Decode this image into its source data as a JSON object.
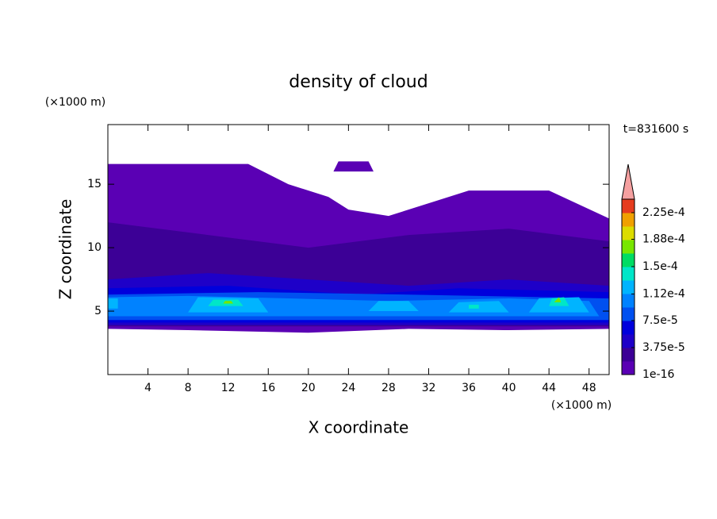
{
  "chart_data": {
    "type": "contour",
    "title": "density of cloud",
    "xlabel": "X coordinate",
    "ylabel": "Z coordinate",
    "xunit": "(×1000 m)",
    "yunit": "(×1000 m)",
    "time_label": "t=831600 s",
    "xlim": [
      0,
      50
    ],
    "ylim": [
      0,
      19.7
    ],
    "xticks": [
      4,
      8,
      12,
      16,
      20,
      24,
      28,
      32,
      36,
      40,
      44,
      48
    ],
    "yticks": [
      5,
      10,
      15
    ],
    "clim": [
      0,
      0.00024375
    ],
    "colors": [
      "#5a00b4",
      "#3c0096",
      "#1e00c8",
      "#0000dc",
      "#0050f0",
      "#0082ff",
      "#00b4ff",
      "#00e6c8",
      "#00dc64",
      "#78e600",
      "#dcdc00",
      "#f0a000",
      "#e63c1e"
    ],
    "extend_color": "#f5a0a0",
    "colorbar_ticks": [
      {
        "value": 1e-16,
        "label": "1e-16"
      },
      {
        "value": 3.75e-05,
        "label": "3.75e-5"
      },
      {
        "value": 7.5e-05,
        "label": "7.5e-5"
      },
      {
        "value": 0.000112,
        "label": "1.12e-4"
      },
      {
        "value": 0.00015,
        "label": "1.5e-4"
      },
      {
        "value": 0.000188,
        "label": "1.88e-4"
      },
      {
        "value": 0.000225,
        "label": "2.25e-4"
      }
    ],
    "regions": [
      {
        "value": 9e-06,
        "x": [
          0,
          8,
          20,
          30,
          40,
          50,
          50,
          44,
          36,
          32,
          28,
          24,
          22,
          18,
          14,
          0
        ],
        "z": [
          3.6,
          3.5,
          3.3,
          3.6,
          3.5,
          3.6,
          12.3,
          14.5,
          14.5,
          13.5,
          12.5,
          13,
          14,
          15,
          16.6,
          16.6
        ]
      },
      {
        "value": 9e-06,
        "x": [
          22.5,
          26.5,
          26,
          23
        ],
        "z": [
          16,
          16,
          16.8,
          16.8
        ]
      },
      {
        "value": 2.5e-05,
        "x": [
          0,
          50,
          50,
          40,
          30,
          20,
          10,
          0
        ],
        "z": [
          3.8,
          3.8,
          10.5,
          11.5,
          11,
          10,
          11,
          12
        ]
      },
      {
        "value": 4.5e-05,
        "x": [
          0,
          50,
          50,
          40,
          30,
          20,
          10,
          0
        ],
        "z": [
          3.9,
          3.9,
          7,
          7.5,
          7,
          7.5,
          8,
          7.5
        ]
      },
      {
        "value": 6.5e-05,
        "x": [
          0,
          50,
          50,
          35,
          25,
          12,
          0
        ],
        "z": [
          4.1,
          4.1,
          6.5,
          6.8,
          6.3,
          7,
          6.8
        ]
      },
      {
        "value": 8.5e-05,
        "x": [
          0,
          50,
          50,
          30,
          15,
          0
        ],
        "z": [
          4.3,
          4.3,
          6,
          6.3,
          6.5,
          6.3
        ]
      },
      {
        "value": 0.0001,
        "x": [
          0,
          49,
          48,
          40,
          28,
          18,
          8,
          0
        ],
        "z": [
          4.6,
          4.6,
          5.8,
          6,
          5.8,
          6,
          6.2,
          6.1
        ]
      },
      {
        "value": 0.00012,
        "x": [
          8,
          16,
          15,
          9
        ],
        "z": [
          4.9,
          4.9,
          6,
          6.1
        ]
      },
      {
        "value": 0.00012,
        "x": [
          26,
          31,
          30,
          27
        ],
        "z": [
          5,
          5,
          5.8,
          5.8
        ]
      },
      {
        "value": 0.00012,
        "x": [
          34,
          40,
          39,
          35
        ],
        "z": [
          4.9,
          4.9,
          5.8,
          5.7
        ]
      },
      {
        "value": 0.00012,
        "x": [
          42,
          48,
          47,
          43
        ],
        "z": [
          4.9,
          4.9,
          6.1,
          6
        ]
      },
      {
        "value": 0.00012,
        "x": [
          0,
          1,
          1,
          0
        ],
        "z": [
          5.2,
          5.2,
          6,
          6
        ]
      },
      {
        "value": 0.000145,
        "x": [
          10,
          13.5,
          13,
          10.5
        ],
        "z": [
          5.4,
          5.4,
          5.9,
          5.9
        ]
      },
      {
        "value": 0.000145,
        "x": [
          44,
          46,
          45.5,
          44.3
        ],
        "z": [
          5.4,
          5.4,
          6.1,
          6
        ]
      },
      {
        "value": 0.000145,
        "x": [
          36,
          37,
          37,
          36
        ],
        "z": [
          5.2,
          5.2,
          5.5,
          5.5
        ]
      },
      {
        "value": 0.00018,
        "x": [
          11.5,
          12.5,
          12.3,
          11.7
        ],
        "z": [
          5.6,
          5.6,
          5.8,
          5.8
        ]
      },
      {
        "value": 0.00018,
        "x": [
          44.5,
          45.2,
          45
        ],
        "z": [
          5.7,
          5.7,
          6.1
        ]
      }
    ]
  }
}
